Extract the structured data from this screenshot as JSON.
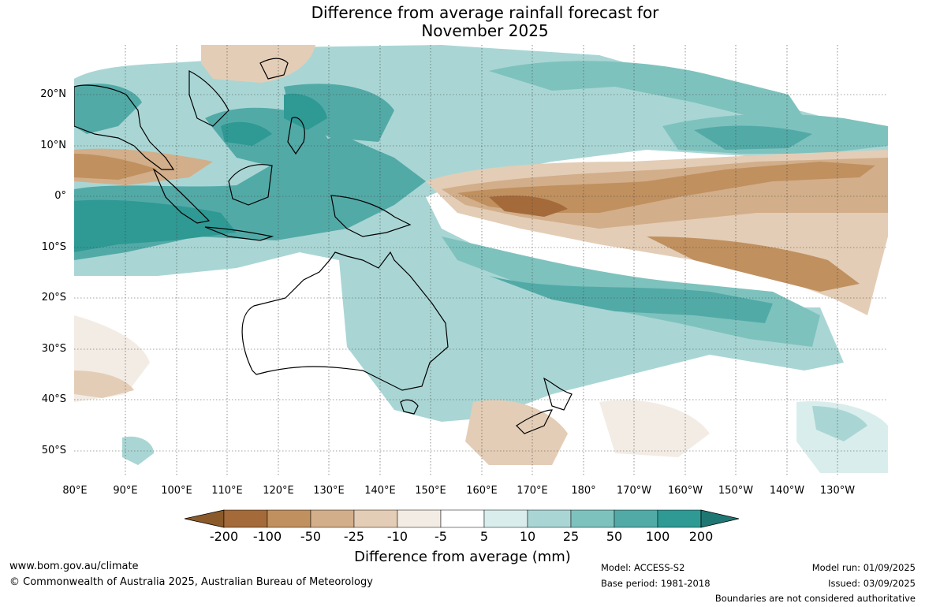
{
  "title_line1": "Difference from average rainfall forecast for",
  "title_line2": "November 2025",
  "lat_labels": [
    "20°N",
    "10°N",
    "0°",
    "10°S",
    "20°S",
    "30°S",
    "40°S",
    "50°S"
  ],
  "lon_labels": [
    "80°E",
    "90°E",
    "100°E",
    "110°E",
    "120°E",
    "130°E",
    "140°E",
    "150°E",
    "160°E",
    "170°E",
    "180°",
    "170°W",
    "160°W",
    "150°W",
    "140°W",
    "130°W"
  ],
  "colorbar": {
    "labels": [
      "-200",
      "-100",
      "-50",
      "-25",
      "-10",
      "-5",
      "5",
      "10",
      "25",
      "50",
      "100",
      "200"
    ],
    "colors": [
      "#a46a3a",
      "#c0905f",
      "#d2ae8a",
      "#e4cdb6",
      "#f3ece5",
      "#ffffff",
      "#d9edec",
      "#a9d6d4",
      "#7ec2be",
      "#52aaa7",
      "#2f9994"
    ],
    "title": "Difference from average (mm)"
  },
  "footer": {
    "website": "www.bom.gov.au/climate",
    "copyright": "© Commonwealth of Australia 2025, Australian Bureau of Meteorology",
    "model": "Model: ACCESS-S2",
    "base_period": "Base period: 1981-2018",
    "model_run": "Model run: 01/09/2025",
    "issued": "Issued: 03/09/2025",
    "disclaimer": "Boundaries are not considered authoritative"
  }
}
